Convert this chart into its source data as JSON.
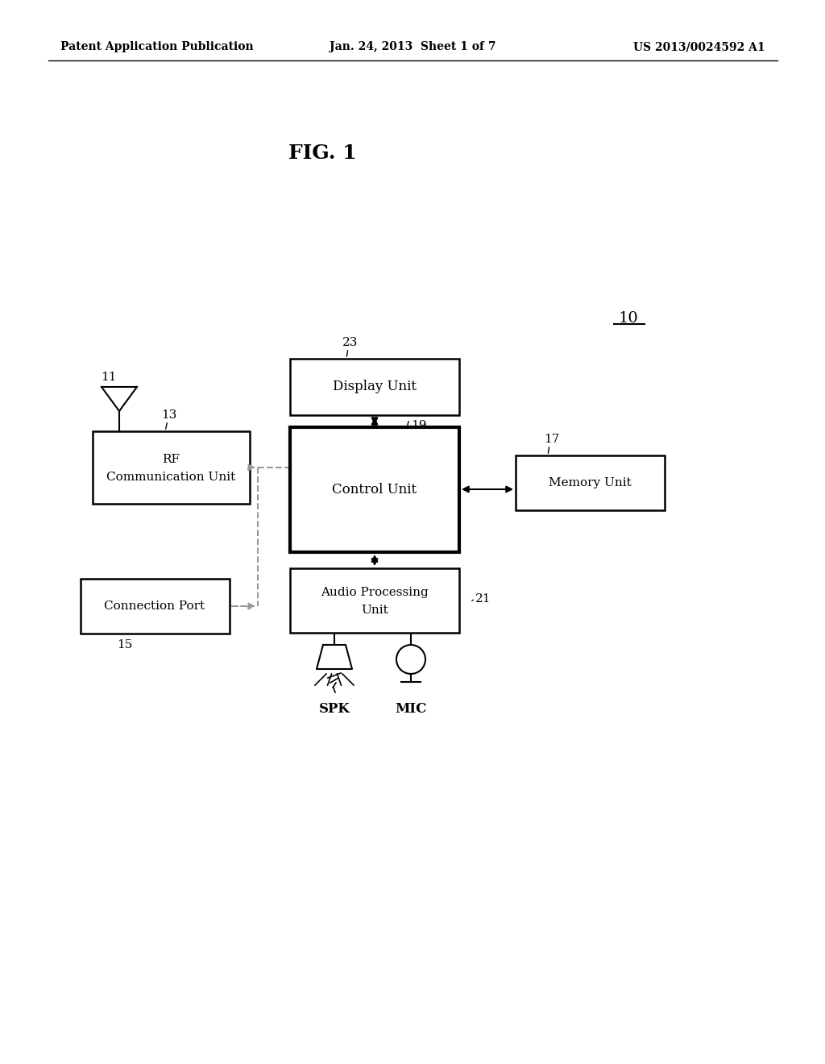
{
  "bg_color": "#ffffff",
  "header_left": "Patent Application Publication",
  "header_mid": "Jan. 24, 2013  Sheet 1 of 7",
  "header_right": "US 2013/0024592 A1",
  "fig_label": "FIG. 1",
  "system_label": "10",
  "page_width": 10.24,
  "page_height": 13.2
}
